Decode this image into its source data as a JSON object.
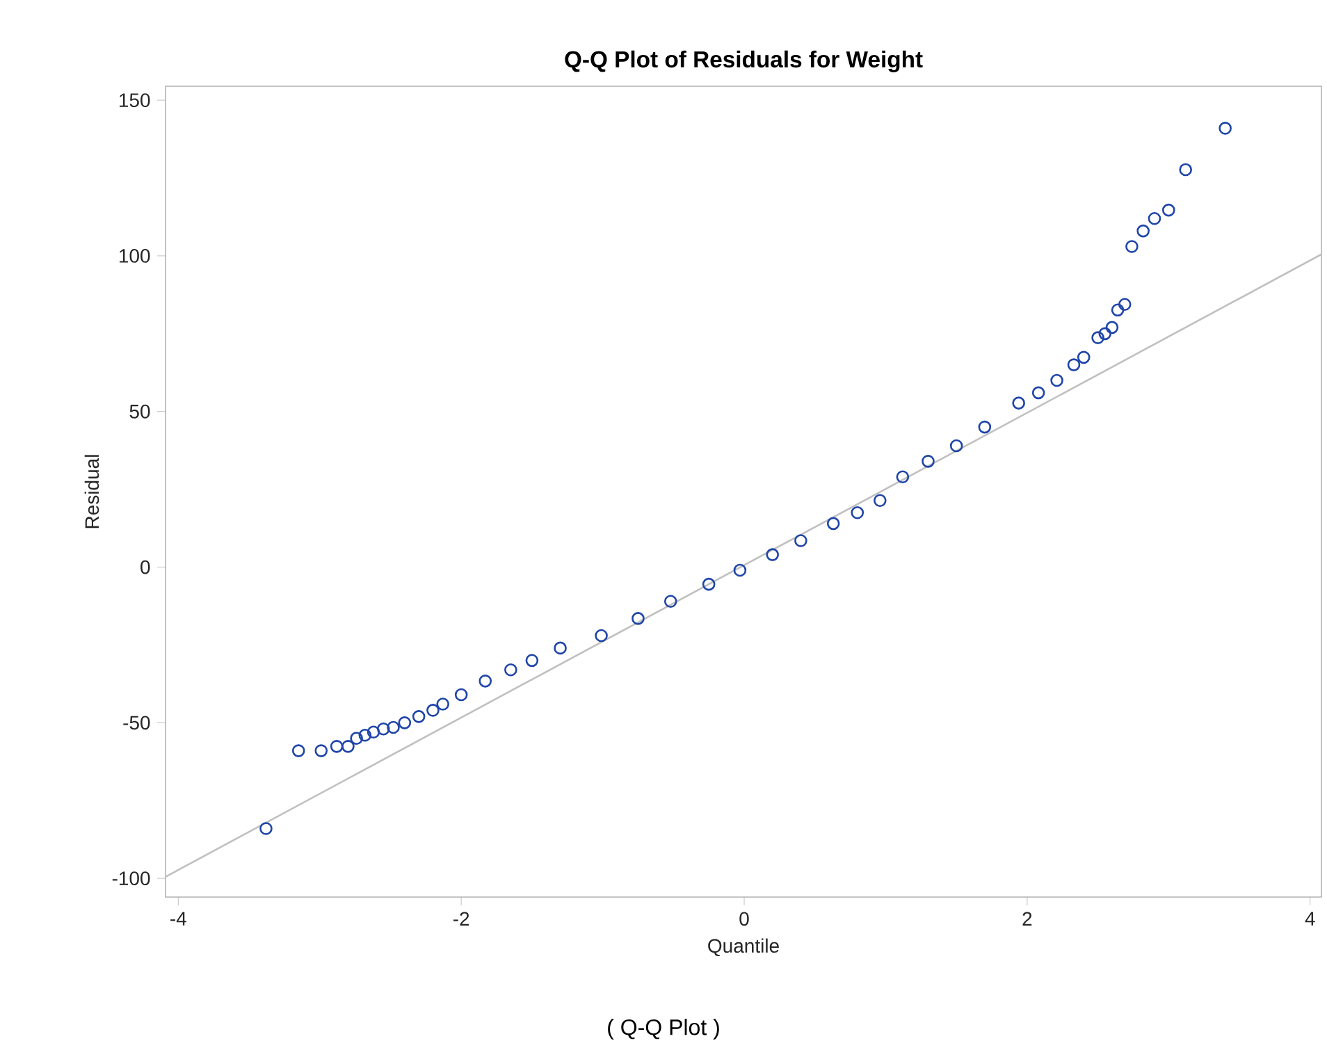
{
  "chart_data": {
    "type": "scatter",
    "title": "Q-Q Plot of Residuals for Weight",
    "xlabel": "Quantile",
    "ylabel": "Residual",
    "annotations": [
      "( Q-Q Plot )"
    ],
    "xlim": [
      -4.09,
      4.08
    ],
    "ylim": [
      -106,
      154.5
    ],
    "xticks": [
      -4,
      -2,
      0,
      2,
      4
    ],
    "yticks": [
      -100,
      -50,
      0,
      50,
      100,
      150
    ],
    "marker": "circle",
    "series": [
      {
        "type": "line",
        "color": "#c0c0c0",
        "marker": "none",
        "x": [
          -4.09,
          4.08
        ],
        "values": [
          -99.5,
          100.5
        ]
      },
      {
        "color": "#1f45a8",
        "x": [
          -3.38,
          -3.15,
          -2.99,
          -2.88,
          -2.8,
          -2.74,
          -2.68,
          -2.62,
          -2.55,
          -2.48,
          -2.4,
          -2.3,
          -2.2,
          -2.13,
          -2.0,
          -1.83,
          -1.65,
          -1.5,
          -1.3,
          -1.01,
          -0.75,
          -0.52,
          -0.25,
          -0.03,
          0.2,
          0.4,
          0.63,
          0.8,
          0.96,
          1.12,
          1.3,
          1.5,
          1.7,
          1.94,
          2.08,
          2.21,
          2.33,
          2.4,
          2.5,
          2.55,
          2.6,
          2.64,
          2.69,
          2.74,
          2.82,
          2.9,
          3.0,
          3.12,
          3.4
        ],
        "values": [
          -84,
          -59,
          -59,
          -57.6,
          -57.6,
          -55,
          -54,
          -53,
          -52,
          -51.5,
          -50,
          -48,
          -46,
          -44,
          -41,
          -36.6,
          -33,
          -30,
          -26,
          -22,
          -16.5,
          -11,
          -5.5,
          -1,
          4,
          8.5,
          14,
          17.5,
          21.4,
          29,
          34,
          39,
          45,
          52.7,
          56,
          60,
          65,
          67.4,
          73.7,
          75,
          77,
          82.6,
          84.4,
          103,
          108,
          112,
          114.7,
          127.7,
          141
        ]
      }
    ]
  }
}
